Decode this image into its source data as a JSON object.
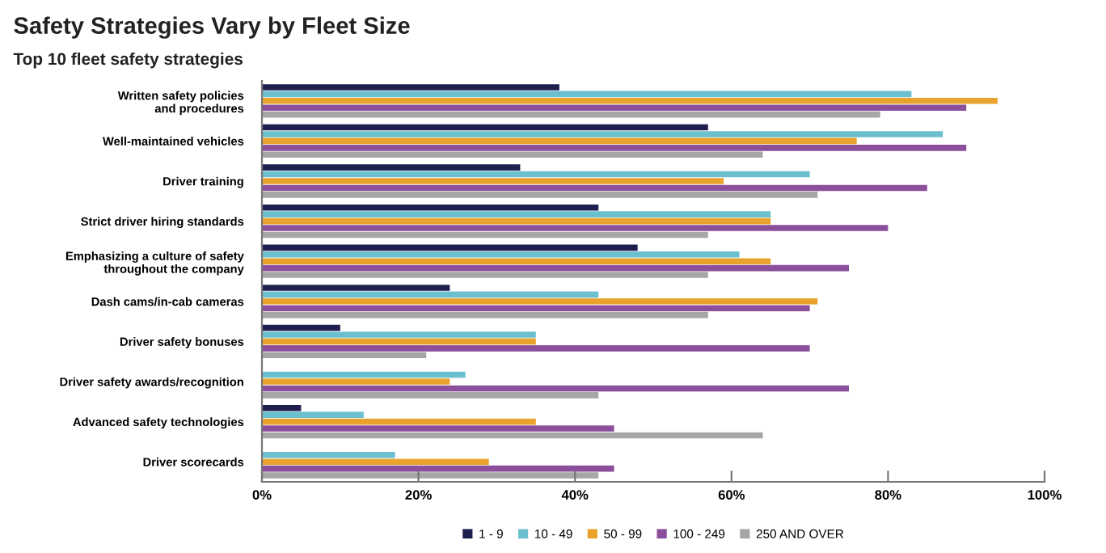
{
  "chart_data": {
    "type": "bar",
    "orientation": "horizontal",
    "title": "Safety Strategies Vary by Fleet Size",
    "subtitle": "Top 10 fleet safety strategies",
    "categories": [
      "Written safety policies\nand procedures",
      "Well-maintained vehicles",
      "Driver training",
      "Strict driver hiring standards",
      "Emphasizing a culture of safety\nthroughout the company",
      "Dash cams/in-cab cameras",
      "Driver safety bonuses",
      "Driver safety awards/recognition",
      "Advanced safety technologies",
      "Driver scorecards"
    ],
    "series": [
      {
        "name": "1 - 9",
        "color": "#1f1f4f",
        "values": [
          38,
          57,
          33,
          43,
          48,
          24,
          10,
          null,
          5,
          null
        ]
      },
      {
        "name": "10 - 49",
        "color": "#6bbfcf",
        "values": [
          83,
          87,
          70,
          65,
          61,
          43,
          35,
          26,
          13,
          17
        ]
      },
      {
        "name": "50 - 99",
        "color": "#e9a32c",
        "values": [
          94,
          76,
          59,
          65,
          65,
          71,
          35,
          24,
          35,
          29
        ]
      },
      {
        "name": "100 - 249",
        "color": "#8b4f9c",
        "values": [
          90,
          90,
          85,
          80,
          75,
          70,
          70,
          75,
          45,
          45
        ]
      },
      {
        "name": "250 AND OVER",
        "color": "#a6a6a6",
        "values": [
          79,
          64,
          71,
          57,
          57,
          57,
          21,
          43,
          64,
          43
        ]
      }
    ],
    "xlim": [
      0,
      100
    ],
    "xticks": [
      {
        "value": 0,
        "label": "0%"
      },
      {
        "value": 20,
        "label": "20%"
      },
      {
        "value": 40,
        "label": "40%"
      },
      {
        "value": 60,
        "label": "60%"
      },
      {
        "value": 80,
        "label": "80%"
      },
      {
        "value": 100,
        "label": "100%"
      }
    ],
    "legend": "bottom",
    "grid": false
  }
}
